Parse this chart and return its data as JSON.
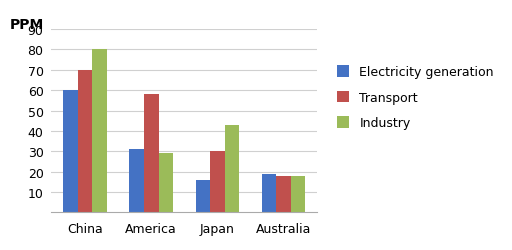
{
  "categories": [
    "China",
    "America",
    "Japan",
    "Australia"
  ],
  "series": {
    "Electricity generation": [
      60,
      31,
      16,
      19
    ],
    "Transport": [
      70,
      58,
      30,
      18
    ],
    "Industry": [
      80,
      29,
      43,
      18
    ]
  },
  "colors": {
    "Electricity generation": "#4472C4",
    "Transport": "#C0504D",
    "Industry": "#9BBB59"
  },
  "ppm_label": "PPM",
  "ylim": [
    0,
    90
  ],
  "yticks": [
    10,
    20,
    30,
    40,
    50,
    60,
    70,
    80,
    90
  ],
  "bar_width": 0.22,
  "legend_labels": [
    "Electricity generation",
    "Transport",
    "Industry"
  ],
  "background_color": "#ffffff",
  "grid_color": "#d0d0d0"
}
